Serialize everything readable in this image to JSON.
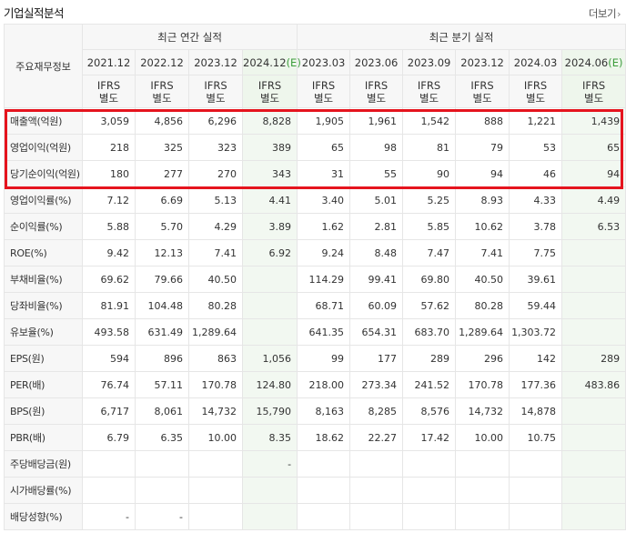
{
  "header": {
    "title": "기업실적분석",
    "more_label": "더보기",
    "more_icon": "chevron-right-icon"
  },
  "table": {
    "corner_label": "주요재무정보",
    "group_annual": "최근 연간 실적",
    "group_quarterly": "최근 분기 실적",
    "periods": [
      {
        "label": "2021.12",
        "est": false,
        "est_mark": ""
      },
      {
        "label": "2022.12",
        "est": false,
        "est_mark": ""
      },
      {
        "label": "2023.12",
        "est": false,
        "est_mark": ""
      },
      {
        "label": "2024.12",
        "est": true,
        "est_mark": "(E)"
      },
      {
        "label": "2023.03",
        "est": false,
        "est_mark": ""
      },
      {
        "label": "2023.06",
        "est": false,
        "est_mark": ""
      },
      {
        "label": "2023.09",
        "est": false,
        "est_mark": ""
      },
      {
        "label": "2023.12",
        "est": false,
        "est_mark": ""
      },
      {
        "label": "2024.03",
        "est": false,
        "est_mark": ""
      },
      {
        "label": "2024.06",
        "est": true,
        "est_mark": "(E)"
      }
    ],
    "basis_line1": "IFRS",
    "basis_line2": "별도",
    "rows": [
      {
        "label": "매출액(억원)",
        "values": [
          "3,059",
          "4,856",
          "6,296",
          "8,828",
          "1,905",
          "1,961",
          "1,542",
          "888",
          "1,221",
          "1,439"
        ]
      },
      {
        "label": "영업이익(억원)",
        "values": [
          "218",
          "325",
          "323",
          "389",
          "65",
          "98",
          "81",
          "79",
          "53",
          "65"
        ]
      },
      {
        "label": "당기순이익(억원)",
        "values": [
          "180",
          "277",
          "270",
          "343",
          "31",
          "55",
          "90",
          "94",
          "46",
          "94"
        ]
      },
      {
        "label": "영업이익률(%)",
        "values": [
          "7.12",
          "6.69",
          "5.13",
          "4.41",
          "3.40",
          "5.01",
          "5.25",
          "8.93",
          "4.33",
          "4.49"
        ]
      },
      {
        "label": "순이익률(%)",
        "values": [
          "5.88",
          "5.70",
          "4.29",
          "3.89",
          "1.62",
          "2.81",
          "5.85",
          "10.62",
          "3.78",
          "6.53"
        ]
      },
      {
        "label": "ROE(%)",
        "values": [
          "9.42",
          "12.13",
          "7.41",
          "6.92",
          "9.24",
          "8.48",
          "7.47",
          "7.41",
          "7.75",
          ""
        ]
      },
      {
        "label": "부채비율(%)",
        "values": [
          "69.62",
          "79.66",
          "40.50",
          "",
          "114.29",
          "99.41",
          "69.80",
          "40.50",
          "39.61",
          ""
        ]
      },
      {
        "label": "당좌비율(%)",
        "values": [
          "81.91",
          "104.48",
          "80.28",
          "",
          "68.71",
          "60.09",
          "57.62",
          "80.28",
          "59.44",
          ""
        ]
      },
      {
        "label": "유보율(%)",
        "values": [
          "493.58",
          "631.49",
          "1,289.64",
          "",
          "641.35",
          "654.31",
          "683.70",
          "1,289.64",
          "1,303.72",
          ""
        ]
      },
      {
        "label": "EPS(원)",
        "values": [
          "594",
          "896",
          "863",
          "1,056",
          "99",
          "177",
          "289",
          "296",
          "142",
          "289"
        ]
      },
      {
        "label": "PER(배)",
        "values": [
          "76.74",
          "57.11",
          "170.78",
          "124.80",
          "218.00",
          "273.34",
          "241.52",
          "170.78",
          "177.36",
          "483.86"
        ]
      },
      {
        "label": "BPS(원)",
        "values": [
          "6,717",
          "8,061",
          "14,732",
          "15,790",
          "8,163",
          "8,285",
          "8,576",
          "14,732",
          "14,878",
          ""
        ]
      },
      {
        "label": "PBR(배)",
        "values": [
          "6.79",
          "6.35",
          "10.00",
          "8.35",
          "18.62",
          "22.27",
          "17.42",
          "10.00",
          "10.75",
          ""
        ]
      },
      {
        "label": "주당배당금(원)",
        "values": [
          "",
          "",
          "",
          "-",
          "",
          "",
          "",
          "",
          "",
          ""
        ]
      },
      {
        "label": "시가배당률(%)",
        "values": [
          "",
          "",
          "",
          "",
          "",
          "",
          "",
          "",
          "",
          ""
        ]
      },
      {
        "label": "배당성향(%)",
        "values": [
          "-",
          "-",
          "",
          "",
          "",
          "",
          "",
          "",
          "",
          ""
        ]
      }
    ]
  },
  "colors": {
    "highlight": "#e5141e",
    "basis": "#e8731b",
    "estimate_mark": "#3d9d3d",
    "estimate_bg": "#f2f8f1"
  }
}
